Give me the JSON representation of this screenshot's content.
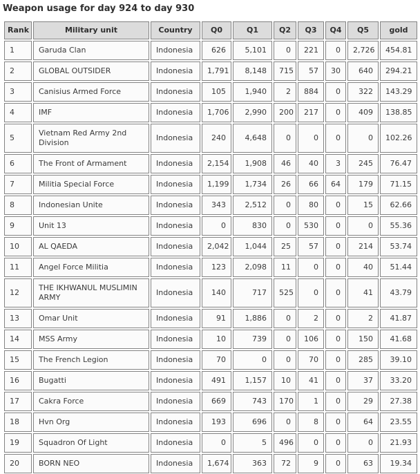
{
  "title": "Weapon usage for day 924 to day 930",
  "colors": {
    "header_bg": "#dcdcdc",
    "cell_bg": "#fbfbfb",
    "border": "#828282",
    "text": "#3a3a3a"
  },
  "table": {
    "columns": [
      "Rank",
      "Military unit",
      "Country",
      "Q0",
      "Q1",
      "Q2",
      "Q3",
      "Q4",
      "Q5",
      "gold"
    ],
    "rows": [
      [
        "1",
        "Garuda Clan",
        "Indonesia",
        "626",
        "5,101",
        "0",
        "221",
        "0",
        "2,726",
        "454.81"
      ],
      [
        "2",
        "GLOBAL OUTSIDER",
        "Indonesia",
        "1,791",
        "8,148",
        "715",
        "57",
        "30",
        "640",
        "294.21"
      ],
      [
        "3",
        "Canisius Armed Force",
        "Indonesia",
        "105",
        "1,940",
        "2",
        "884",
        "0",
        "322",
        "143.29"
      ],
      [
        "4",
        "IMF",
        "Indonesia",
        "1,706",
        "2,990",
        "200",
        "217",
        "0",
        "409",
        "138.85"
      ],
      [
        "5",
        "Vietnam Red Army 2nd Division",
        "Indonesia",
        "240",
        "4,648",
        "0",
        "0",
        "0",
        "0",
        "102.26"
      ],
      [
        "6",
        "The Front of Armament",
        "Indonesia",
        "2,154",
        "1,908",
        "46",
        "40",
        "3",
        "245",
        "76.47"
      ],
      [
        "7",
        "Militia Special Force",
        "Indonesia",
        "1,199",
        "1,734",
        "26",
        "66",
        "64",
        "179",
        "71.15"
      ],
      [
        "8",
        "Indonesian Unite",
        "Indonesia",
        "343",
        "2,512",
        "0",
        "80",
        "0",
        "15",
        "62.66"
      ],
      [
        "9",
        "Unit 13",
        "Indonesia",
        "0",
        "830",
        "0",
        "530",
        "0",
        "0",
        "55.36"
      ],
      [
        "10",
        "AL QAEDA",
        "Indonesia",
        "2,042",
        "1,044",
        "25",
        "57",
        "0",
        "214",
        "53.74"
      ],
      [
        "11",
        "Angel Force Militia",
        "Indonesia",
        "123",
        "2,098",
        "11",
        "0",
        "0",
        "40",
        "51.44"
      ],
      [
        "12",
        "THE IKHWANUL MUSLIMIN ARMY",
        "Indonesia",
        "140",
        "717",
        "525",
        "0",
        "0",
        "41",
        "43.79"
      ],
      [
        "13",
        "Omar Unit",
        "Indonesia",
        "91",
        "1,886",
        "0",
        "2",
        "0",
        "2",
        "41.87"
      ],
      [
        "14",
        "MSS Army",
        "Indonesia",
        "10",
        "739",
        "0",
        "106",
        "0",
        "150",
        "41.68"
      ],
      [
        "15",
        "The French Legion",
        "Indonesia",
        "70",
        "0",
        "0",
        "70",
        "0",
        "285",
        "39.10"
      ],
      [
        "16",
        "Bugatti",
        "Indonesia",
        "491",
        "1,157",
        "10",
        "41",
        "0",
        "37",
        "33.20"
      ],
      [
        "17",
        "Cakra Force",
        "Indonesia",
        "669",
        "743",
        "170",
        "1",
        "0",
        "29",
        "27.38"
      ],
      [
        "18",
        "Hvn Org",
        "Indonesia",
        "193",
        "696",
        "0",
        "8",
        "0",
        "64",
        "23.55"
      ],
      [
        "19",
        "Squadron Of Light",
        "Indonesia",
        "0",
        "5",
        "496",
        "0",
        "0",
        "0",
        "21.93"
      ],
      [
        "20",
        "BORN NEO",
        "Indonesia",
        "1,674",
        "363",
        "72",
        "9",
        "0",
        "63",
        "19.34"
      ]
    ]
  }
}
